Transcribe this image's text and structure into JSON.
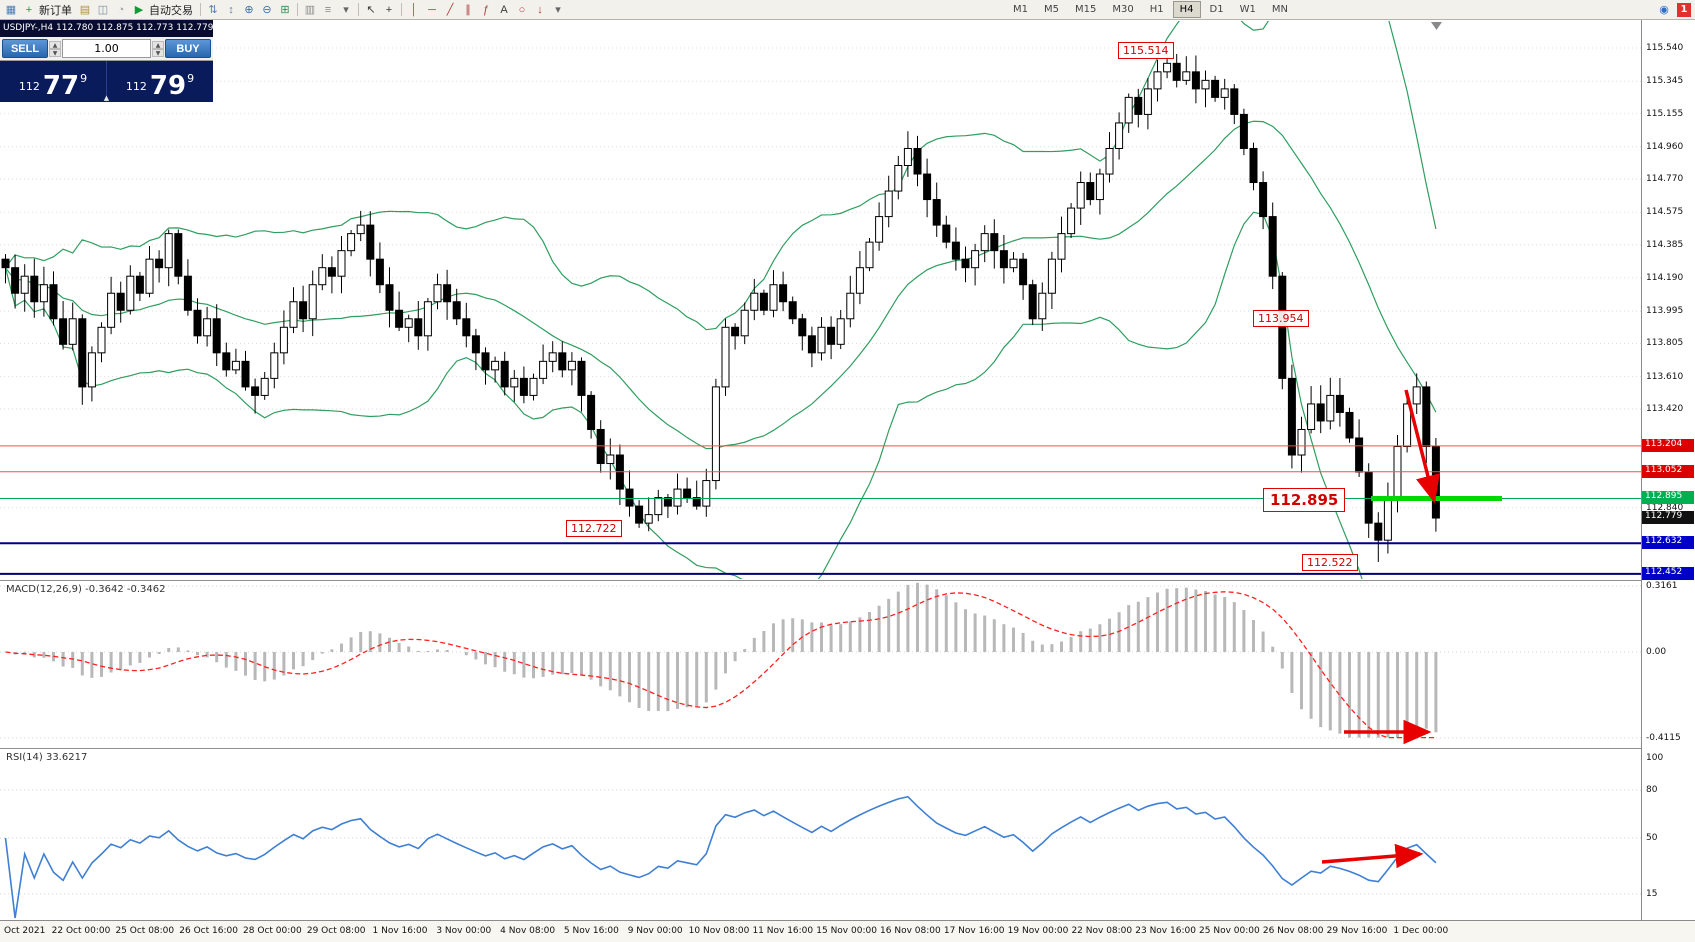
{
  "toolbar": {
    "new_order": "新订单",
    "auto_trading": "自动交易",
    "badge": "1",
    "timeframes": [
      "M1",
      "M5",
      "M15",
      "M30",
      "H1",
      "H4",
      "D1",
      "W1",
      "MN"
    ],
    "active_timeframe": "H4",
    "items": [
      {
        "n": "new-chart-icon",
        "g": "▦",
        "c": "#4a7ab5"
      },
      {
        "n": "new-order-button",
        "g": "+",
        "c": "#12a03c",
        "label": "新订单"
      },
      {
        "n": "profiles-icon",
        "g": "▤",
        "c": "#b08e3e"
      },
      {
        "n": "window-layout-icon",
        "g": "◫",
        "c": "#7d8ca3"
      },
      {
        "n": "history-center-icon",
        "g": "◔",
        "c": "#9aa0a8"
      },
      {
        "n": "auto-trading-button",
        "g": "▶",
        "c": "#0f9c34",
        "label": "自动交易"
      },
      {
        "n": "sep1",
        "sep": true
      },
      {
        "n": "bar-up-icon",
        "g": "⇅",
        "c": "#5b7fae"
      },
      {
        "n": "bar-down-icon",
        "g": "↕",
        "c": "#5b7fae"
      },
      {
        "n": "zoom-in-icon",
        "g": "⊕",
        "c": "#3c6fae"
      },
      {
        "n": "zoom-out-icon",
        "g": "⊖",
        "c": "#3c6fae"
      },
      {
        "n": "tile-windows-icon",
        "g": "⊞",
        "c": "#2f8f56"
      },
      {
        "n": "sep2",
        "sep": true
      },
      {
        "n": "indicators-icon",
        "g": "▥",
        "c": "#8a8a8a"
      },
      {
        "n": "objects-list-icon",
        "g": "≡",
        "c": "#8a8a8a"
      },
      {
        "n": "indicator-dropdown-icon",
        "g": "▾",
        "c": "#666666"
      },
      {
        "n": "sep3",
        "sep": true
      },
      {
        "n": "cursor-icon",
        "g": "↖",
        "c": "#3a3a3a"
      },
      {
        "n": "crosshair-icon",
        "g": "+",
        "c": "#3a3a3a"
      },
      {
        "n": "sep4",
        "sep": true
      },
      {
        "n": "vertical-line-icon",
        "g": "│",
        "c": "#b04040"
      },
      {
        "n": "horizontal-line-icon",
        "g": "─",
        "c": "#b04040"
      },
      {
        "n": "trendline-icon",
        "g": "╱",
        "c": "#b04040"
      },
      {
        "n": "channel-icon",
        "g": "∥",
        "c": "#b04040"
      },
      {
        "n": "fibonacci-icon",
        "g": "ƒ",
        "c": "#b04040"
      },
      {
        "n": "text-icon",
        "g": "A",
        "c": "#3a3a3a"
      },
      {
        "n": "ellipse-icon",
        "g": "○",
        "c": "#b04040"
      },
      {
        "n": "arrow-object-icon",
        "g": "↓",
        "c": "#c03030"
      },
      {
        "n": "objects-dropdown-icon",
        "g": "▾",
        "c": "#666666"
      }
    ]
  },
  "quote_panel": {
    "title": "USDJPY-,H4  112.780 112.875 112.773 112.779",
    "sell_label": "SELL",
    "buy_label": "BUY",
    "volume": "1.00",
    "sell_small": "112",
    "sell_big": "77",
    "sell_sup": "9",
    "buy_small": "112",
    "buy_big": "79",
    "buy_sup": "9",
    "caret": "▲"
  },
  "main_chart": {
    "annotations": {
      "high": "115.514",
      "lower_high": "113.954",
      "level": "112.895",
      "low1": "112.722",
      "low2": "112.522"
    },
    "axis_plain": [
      "115.540",
      "115.345",
      "115.155",
      "114.960",
      "114.770",
      "114.575",
      "114.385",
      "114.190",
      "113.995",
      "113.805",
      "113.610",
      "113.420",
      "112.840"
    ],
    "badges": [
      {
        "text": "113.204",
        "value": 113.204,
        "type": "red"
      },
      {
        "text": "113.052",
        "value": 113.052,
        "type": "red"
      },
      {
        "text": "112.895",
        "value": 112.895,
        "type": "green"
      },
      {
        "text": "112.779",
        "value": 112.779,
        "type": "black"
      },
      {
        "text": "112.632",
        "value": 112.632,
        "type": "blue"
      },
      {
        "text": "112.452",
        "value": 112.452,
        "type": "blue"
      }
    ],
    "hlines": [
      {
        "value": 113.204,
        "color": "#ff4a4a",
        "w": 1
      },
      {
        "value": 113.052,
        "color": "#ff4a4a",
        "w": 1
      },
      {
        "value": 112.895,
        "color": "#00a651",
        "w": 1
      },
      {
        "value": 112.632,
        "color": "#000080",
        "w": 2
      },
      {
        "value": 112.452,
        "color": "#000080",
        "w": 2
      }
    ],
    "green_segment_value": 112.895
  },
  "macd": {
    "label": "MACD(12,26,9) -0.3642 -0.3462",
    "axis": [
      {
        "text": "0.3161",
        "value": 0.3161
      },
      {
        "text": "0.00",
        "value": 0
      },
      {
        "text": "-0.4115",
        "value": -0.4115
      }
    ]
  },
  "rsi": {
    "label": "RSI(14) 33.6217",
    "axis": [
      {
        "text": "100",
        "value": 100
      },
      {
        "text": "80",
        "value": 80
      },
      {
        "text": "50",
        "value": 50
      },
      {
        "text": "15",
        "value": 15
      }
    ]
  },
  "time_axis": [
    "Oct 2021",
    "22 Oct 00:00",
    "25 Oct 08:00",
    "26 Oct 16:00",
    "28 Oct 00:00",
    "29 Oct 08:00",
    "1 Nov 16:00",
    "3 Nov 00:00",
    "4 Nov 08:00",
    "5 Nov 16:00",
    "9 Nov 00:00",
    "10 Nov 08:00",
    "11 Nov 16:00",
    "15 Nov 00:00",
    "16 Nov 08:00",
    "17 Nov 16:00",
    "19 Nov 00:00",
    "22 Nov 08:00",
    "23 Nov 16:00",
    "25 Nov 00:00",
    "26 Nov 08:00",
    "29 Nov 16:00",
    "1 Dec 00:00"
  ],
  "chart_data": {
    "type": "candlestick",
    "symbol": "USDJPY",
    "timeframe": "H4",
    "current_bar": {
      "open": 112.78,
      "high": 112.875,
      "low": 112.773,
      "close": 112.779
    },
    "y_axis": {
      "min": 112.452,
      "max": 115.54
    },
    "annotated_prices": [
      115.514,
      113.954,
      112.895,
      112.722,
      112.522
    ],
    "levels": [
      113.204,
      113.052,
      112.895,
      112.632,
      112.452
    ],
    "closes": [
      114.25,
      114.1,
      114.2,
      114.05,
      114.15,
      113.95,
      113.8,
      113.95,
      113.55,
      113.75,
      113.9,
      114.1,
      114.0,
      114.2,
      114.1,
      114.3,
      114.25,
      114.45,
      114.2,
      114.0,
      113.85,
      113.95,
      113.75,
      113.65,
      113.7,
      113.55,
      113.5,
      113.6,
      113.75,
      113.9,
      114.05,
      113.95,
      114.15,
      114.25,
      114.2,
      114.35,
      114.45,
      114.5,
      114.3,
      114.15,
      114.0,
      113.9,
      113.95,
      113.85,
      114.05,
      114.15,
      114.05,
      113.95,
      113.85,
      113.75,
      113.65,
      113.7,
      113.55,
      113.6,
      113.5,
      113.6,
      113.7,
      113.75,
      113.65,
      113.7,
      113.5,
      113.3,
      113.1,
      113.15,
      112.95,
      112.85,
      112.75,
      112.8,
      112.9,
      112.85,
      112.95,
      112.9,
      112.85,
      113.0,
      113.55,
      113.9,
      113.85,
      114.0,
      114.1,
      114.0,
      114.15,
      114.05,
      113.95,
      113.85,
      113.75,
      113.9,
      113.8,
      113.95,
      114.1,
      114.25,
      114.4,
      114.55,
      114.7,
      114.85,
      114.95,
      114.8,
      114.65,
      114.5,
      114.4,
      114.3,
      114.25,
      114.35,
      114.45,
      114.35,
      114.25,
      114.3,
      114.15,
      113.95,
      114.1,
      114.3,
      114.45,
      114.6,
      114.75,
      114.65,
      114.8,
      114.95,
      115.1,
      115.25,
      115.15,
      115.3,
      115.4,
      115.45,
      115.35,
      115.4,
      115.3,
      115.35,
      115.25,
      115.3,
      115.15,
      114.95,
      114.75,
      114.55,
      114.2,
      113.6,
      113.15,
      113.3,
      113.45,
      113.35,
      113.5,
      113.4,
      113.25,
      113.05,
      112.75,
      112.65,
      112.9,
      113.2,
      113.45,
      113.55,
      113.2,
      112.78
    ],
    "wick_overrides": {
      "66": {
        "low": 112.722
      },
      "121": {
        "high": 115.514
      },
      "143": {
        "low": 112.522
      },
      "149": {
        "low": 112.7
      }
    },
    "indicators": {
      "bollinger": {
        "period": 20,
        "deviation": 2
      },
      "macd": {
        "fast": 12,
        "slow": 26,
        "signal": 9,
        "current": [
          -0.3642,
          -0.3462
        ]
      },
      "rsi": {
        "period": 14,
        "current": 33.6217
      }
    }
  }
}
